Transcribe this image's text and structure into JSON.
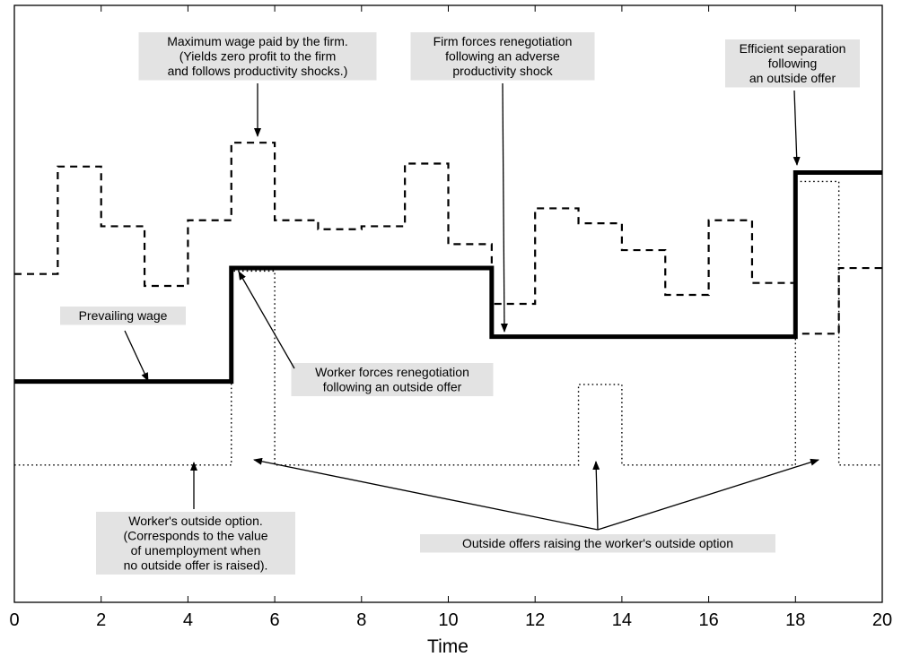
{
  "chart_data": {
    "type": "line",
    "title": "",
    "xlabel": "Time",
    "ylabel": "",
    "xlim": [
      0,
      20
    ],
    "ylim": [
      0,
      10
    ],
    "xticks": [
      "0",
      "2",
      "4",
      "6",
      "8",
      "10",
      "12",
      "14",
      "16",
      "18",
      "20"
    ],
    "grid": false,
    "series": [
      {
        "style": "dashed",
        "x": [
          0,
          1,
          2,
          3,
          4,
          5,
          6,
          7,
          8,
          9,
          10,
          11,
          12,
          13,
          14,
          15,
          16,
          17,
          18,
          19,
          20
        ],
        "y": [
          5.5,
          7.3,
          6.3,
          5.3,
          6.4,
          7.7,
          6.4,
          6.25,
          6.3,
          7.35,
          6.0,
          5.0,
          6.6,
          6.35,
          5.9,
          5.15,
          6.4,
          5.35,
          4.5,
          5.6,
          5.6
        ]
      },
      {
        "style": "solid-thick",
        "x": [
          0,
          5,
          11,
          18,
          20
        ],
        "y": [
          3.7,
          5.6,
          4.45,
          7.2,
          7.2
        ]
      },
      {
        "style": "dotted",
        "x": [
          0,
          5,
          6,
          13,
          14,
          18,
          19,
          20
        ],
        "y": [
          2.3,
          5.55,
          2.3,
          3.65,
          2.3,
          7.05,
          2.3,
          2.3
        ]
      }
    ],
    "annotations": [
      {
        "id": "max-wage",
        "lines": [
          "Maximum wage paid by the firm.",
          "(Yields zero profit to the firm",
          "and follows productivity shocks.)"
        ]
      },
      {
        "id": "firm-reneg",
        "lines": [
          "Firm forces renegotiation",
          "following an adverse",
          "productivity shock"
        ]
      },
      {
        "id": "efficient-sep",
        "lines": [
          "Efficient separation",
          "following",
          "an outside offer"
        ]
      },
      {
        "id": "prevailing-wage",
        "lines": [
          "Prevailing wage"
        ]
      },
      {
        "id": "worker-reneg",
        "lines": [
          "Worker forces renegotiation",
          "following an outside offer"
        ]
      },
      {
        "id": "outside-option",
        "lines": [
          "Worker's outside option.",
          "(Corresponds to the value",
          "of unemployment when",
          "no outside offer is raised)."
        ]
      },
      {
        "id": "outside-offers",
        "lines": [
          "Outside offers raising the worker's outside option"
        ]
      }
    ]
  }
}
